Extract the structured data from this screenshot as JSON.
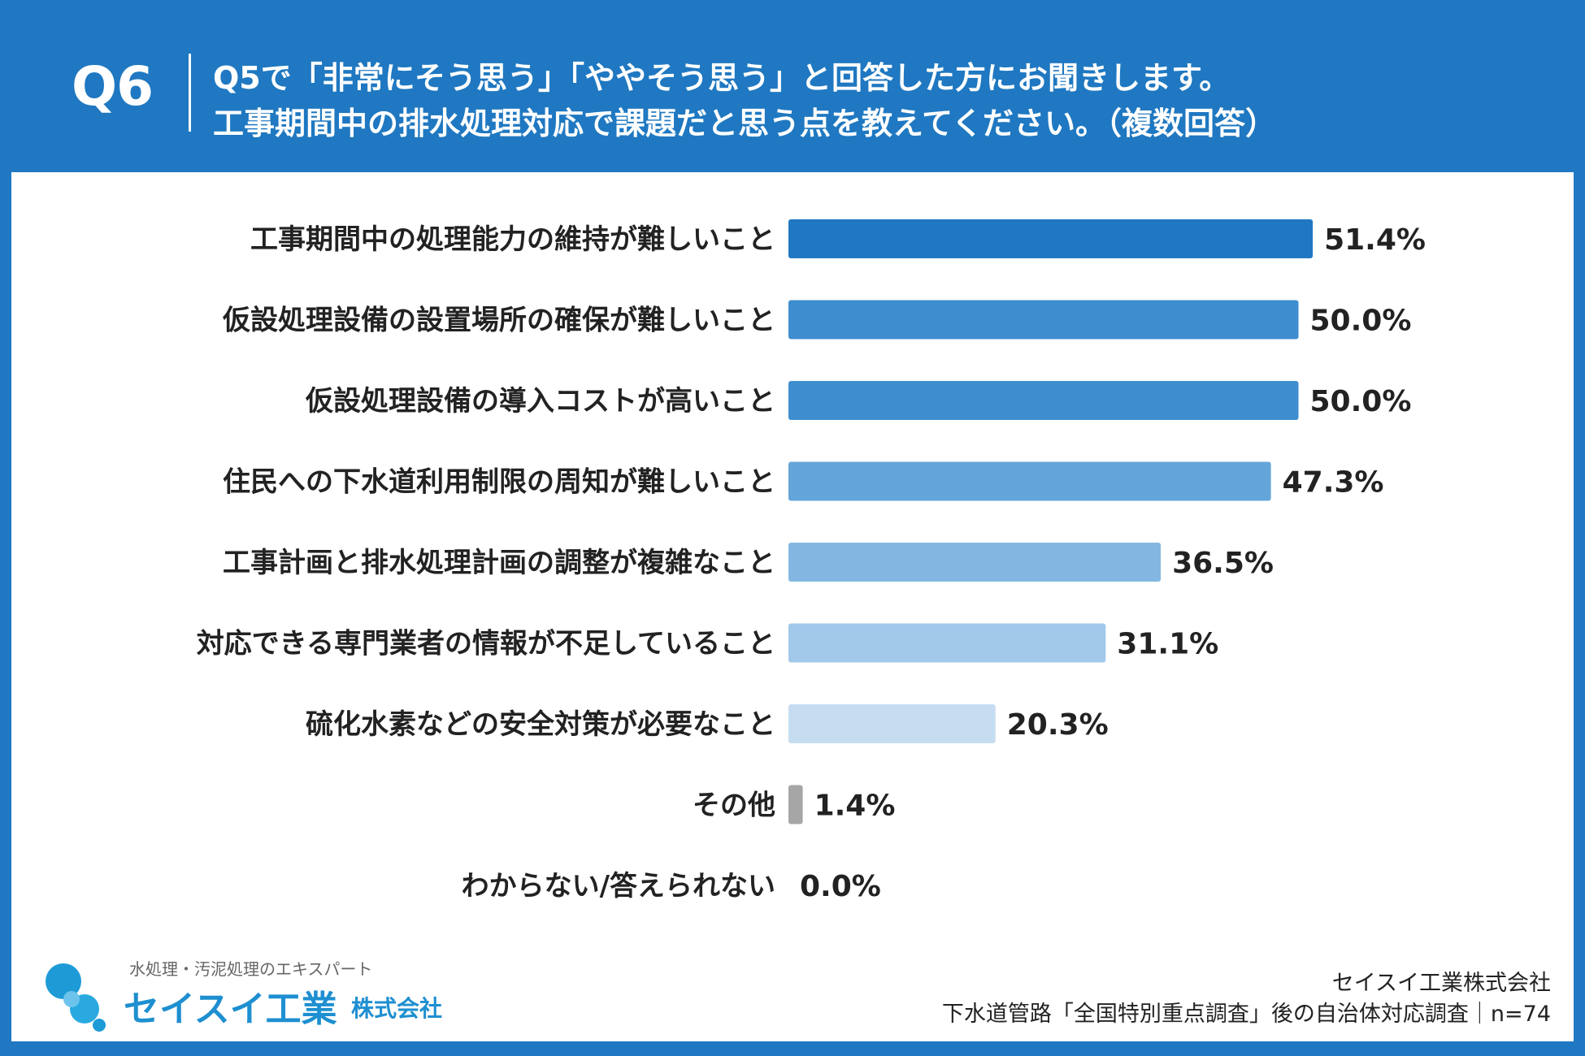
{
  "header": {
    "question_number": "Q6",
    "question_line1": "Q5で「非常にそう思う」「ややそう思う」と回答した方にお聞きします。",
    "question_line2": "工事期間中の排水処理対応で課題だと思う点を教えてください。（複数回答）"
  },
  "chart_data": {
    "type": "bar",
    "orientation": "horizontal",
    "title": "",
    "xlabel": "",
    "ylabel": "",
    "xlim": [
      0,
      100
    ],
    "unit": "%",
    "categories": [
      "工事期間中の処理能力の維持が難しいこと",
      "仮設処理設備の設置場所の確保が難しいこと",
      "仮設処理設備の導入コストが高いこと",
      "住民への下水道利用制限の周知が難しいこと",
      "工事計画と排水処理計画の調整が複雑なこと",
      "対応できる専門業者の情報が不足していること",
      "硫化水素などの安全対策が必要なこと",
      "その他",
      "わからない/答えられない"
    ],
    "values": [
      51.4,
      50.0,
      50.0,
      47.3,
      36.5,
      31.1,
      20.3,
      1.4,
      0.0
    ],
    "value_labels": [
      "51.4%",
      "50.0%",
      "50.0%",
      "47.3%",
      "36.5%",
      "31.1%",
      "20.3%",
      "1.4%",
      "0.0%"
    ],
    "colors": [
      "#1f78c1",
      "#3e8ecf",
      "#3e8ecf",
      "#64a5d9",
      "#83b7e2",
      "#a2c8ea",
      "#c6ddf1",
      "#a6a6a6",
      "#a6a6a6"
    ]
  },
  "logo": {
    "tagline": "水処理・汚泥処理のエキスパート",
    "name": "セイスイ工業",
    "suffix": "株式会社"
  },
  "footer": {
    "company": "セイスイ工業株式会社",
    "source": "下水道管路「全国特別重点調査」後の自治体対応調査｜n=74"
  }
}
